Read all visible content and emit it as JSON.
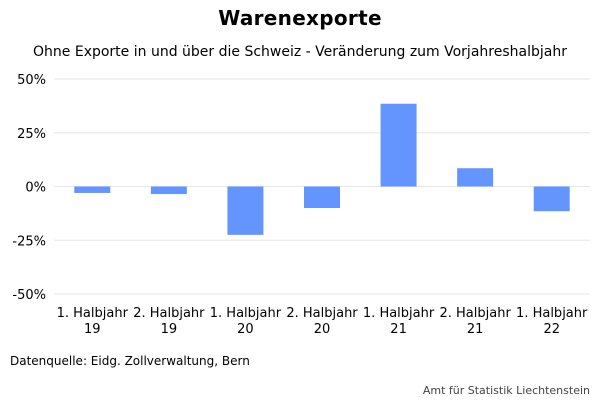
{
  "chart_data": {
    "type": "bar",
    "title": "Warenexporte",
    "subtitle": "Ohne Exporte in und über die Schweiz - Veränderung zum Vorjahreshalbjahr",
    "categories": [
      [
        "1. Halbjahr",
        "19"
      ],
      [
        "2. Halbjahr",
        "19"
      ],
      [
        "1. Halbjahr",
        "20"
      ],
      [
        "2. Halbjahr",
        "20"
      ],
      [
        "1. Halbjahr",
        "21"
      ],
      [
        "2. Halbjahr",
        "21"
      ],
      [
        "1. Halbjahr",
        "22"
      ]
    ],
    "values": [
      -3,
      -3.5,
      -22.5,
      -10,
      38.5,
      8.5,
      -11.5
    ],
    "ylim": [
      -50,
      50
    ],
    "yticks": [
      50,
      25,
      0,
      -25,
      -50
    ],
    "ytick_labels": [
      "50%",
      "25%",
      "0%",
      "-25%",
      "-50%"
    ],
    "grid": true,
    "bar_color": "#6495ff",
    "gridline_color": "#e6e6e6"
  },
  "footer": {
    "source": "Datenquelle: Eidg. Zollverwaltung, Bern",
    "credit": "Amt für Statistik Liechtenstein"
  }
}
